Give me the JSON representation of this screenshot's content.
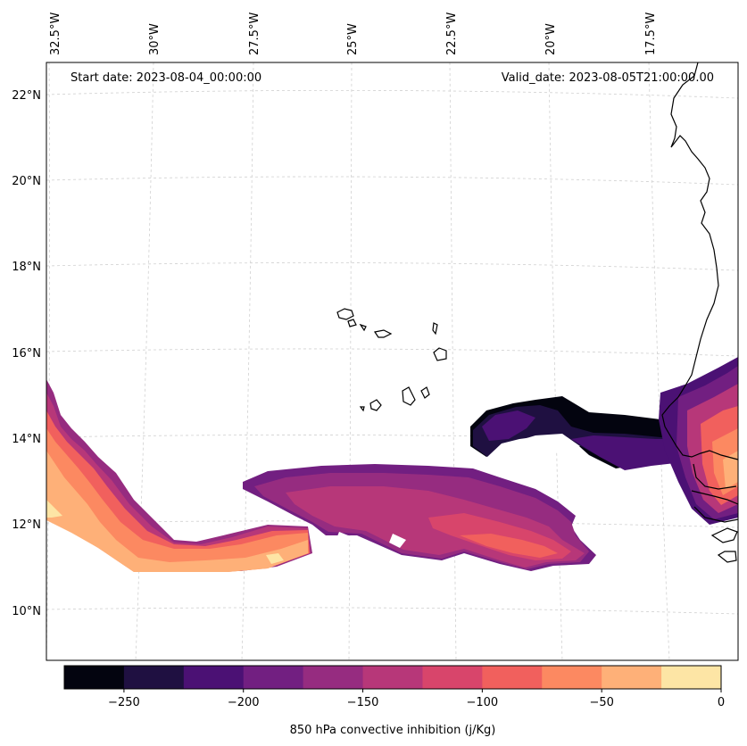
{
  "map": {
    "start_date_label": "Start date: 2023-08-04_00:00:00",
    "valid_date_label": "Valid_date: 2023-08-05T21:00:00.00",
    "lon_labels": [
      "32.5°W",
      "30°W",
      "27.5°W",
      "25°W",
      "22.5°W",
      "20°W",
      "17.5°W"
    ],
    "lat_labels": [
      "22°N",
      "20°N",
      "18°N",
      "16°N",
      "14°N",
      "12°N",
      "10°N"
    ]
  },
  "colorbar": {
    "label": "850 hPa convective inhibition (j/Kg)",
    "ticks": [
      "−250",
      "−200",
      "−150",
      "−100",
      "−50",
      "0"
    ],
    "colors": [
      "#03040f",
      "#1f1041",
      "#4b1174",
      "#721f81",
      "#962c80",
      "#b73779",
      "#d8456b",
      "#f1605d",
      "#fc8961",
      "#feb078",
      "#fde5a5"
    ]
  }
}
